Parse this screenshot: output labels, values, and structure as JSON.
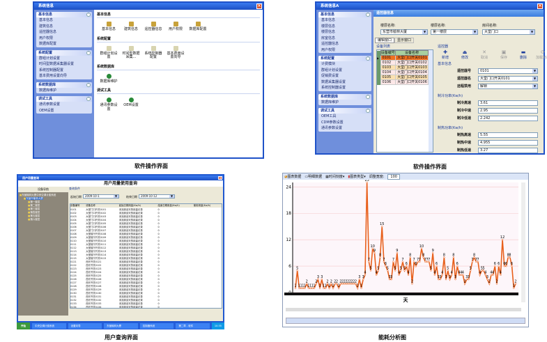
{
  "q1": {
    "title": "系统信息",
    "caption": "软件操作界面",
    "groups": [
      {
        "title": "基本信息",
        "items": [
          "基本信息",
          "建筑信息",
          "遥控器信息",
          "用户权限",
          "数据库配置"
        ]
      },
      {
        "title": "系统配置",
        "items": [
          "群组计划设置",
          "时间型数据采集器设置",
          "系统控制器配置",
          "基本费用设置向导"
        ]
      },
      {
        "title": "系统数据库",
        "items": [
          "数据库维护"
        ]
      },
      {
        "title": "调试工具",
        "items": [
          "通讯参数设置",
          "OEM设置"
        ]
      }
    ],
    "sections": [
      {
        "title": "基本信息",
        "icon": "house-icon",
        "items": [
          "基本信息",
          "建筑信息",
          "遥控器信息",
          "用户权限",
          "数据库配置"
        ]
      },
      {
        "title": "系统配置",
        "icon": "document-icon",
        "items": [
          "群组计划设置",
          "时间型数据采集...",
          "系统控制器配置",
          "基本费用设置向导"
        ]
      },
      {
        "title": "系统数据库",
        "icon": "globe-icon",
        "items": [
          "数据库维护"
        ]
      },
      {
        "title": "调试工具",
        "icon": "globe-icon",
        "items": [
          "通讯参数设置",
          "OEM设置"
        ]
      }
    ]
  },
  "q2": {
    "title": "系统信息A",
    "caption": "软件操作界面",
    "header": "遥控器信息",
    "groups": [
      {
        "title": "基本信息",
        "items": [
          "基本信息",
          "楼层信息",
          "楼层信息",
          "房室信息",
          "遥控器信息",
          "用户权限"
        ]
      },
      {
        "title": "系统配置",
        "items": [
          "计费模块",
          "群组计划设置",
          "促销费设置",
          "数据采集器设置",
          "系统控制器设置"
        ]
      },
      {
        "title": "系统数据库",
        "items": [
          "数据库维护"
        ]
      },
      {
        "title": "调试工具",
        "items": [
          "OEM工具",
          "CDM参数设置",
          "通讯参数设置"
        ]
      }
    ],
    "building_label": "楼层名称:",
    "building": "东营市榆林大厦",
    "floor_label": "楼层名称:",
    "floor": "第一楼层",
    "room_label": "房间名称:",
    "room": "大堂门口",
    "tabs": [
      "编辑窗口",
      "显示窗口"
    ],
    "list_title": "设备列表",
    "cols": [
      "设备编号",
      "设备名称"
    ],
    "rows": [
      [
        "0101",
        "大堂门口开关0101"
      ],
      [
        "0102",
        "大堂门口开关0102"
      ],
      [
        "0103",
        "大堂门口开关0103"
      ],
      [
        "0104",
        "大堂门口开关0104"
      ],
      [
        "0105",
        "大堂门口开关0105"
      ],
      [
        "0106",
        "大堂门口开关0106"
      ]
    ],
    "remote_title": "遥控器",
    "toolbar": [
      "新增",
      "修改",
      "取消",
      "保存",
      "删除",
      "加载功率"
    ],
    "basic_title": "基本信息",
    "basic": [
      [
        "遥控器号",
        "0101"
      ],
      [
        "遥控器名",
        "大堂门口开关0101"
      ],
      [
        "远程禁用",
        "解锁"
      ]
    ],
    "cool_title": "制冷功率(Kw/h)",
    "cool": [
      [
        "制冷高速",
        "3.61"
      ],
      [
        "制冷中速",
        "2.95"
      ],
      [
        "制冷低速",
        "2.242"
      ]
    ],
    "heat_title": "制热功率(Kw/h)",
    "heat": [
      [
        "制热高速",
        "5.55"
      ],
      [
        "制热中速",
        "4.955"
      ],
      [
        "制热低速",
        "3.27"
      ]
    ]
  },
  "q3": {
    "title": "用户用量查询",
    "caption": "用户查询界面",
    "header": "用户用量使用查询",
    "nav_title": "设备导航",
    "tree": [
      "东营榆林大厦中央空调计费系统",
      "东营市榆林大厦",
      "第一楼层",
      "第二楼层",
      "第三楼层",
      "第四楼层",
      "第五楼层",
      "第六楼层"
    ],
    "query_title": "查询条件",
    "start_label": "起始日期",
    "start": "2009-10-1",
    "end_label": "结束日期",
    "end": "2009-10-12",
    "cols": [
      "设备编号",
      "设备名称",
      "起始日期用量(Kw/h)",
      "结束日期用量(Kw/h)",
      "使用用量(Kw/h)"
    ],
    "rows": [
      [
        "0101",
        "大堂门口开关0101"
      ],
      [
        "0102",
        "大堂门口开关0102"
      ],
      [
        "0103",
        "大堂门口开关0103"
      ],
      [
        "0104",
        "大堂门口开关0104"
      ],
      [
        "0105",
        "大堂门口开关0105"
      ],
      [
        "0106",
        "大堂门口开关0106"
      ],
      [
        "0107",
        "大堂门口开关0107"
      ],
      [
        "0108",
        "大堂前厅开关0108"
      ],
      [
        "0109",
        "大堂前厅开关0109"
      ],
      [
        "0110",
        "大堂前厅开关0110"
      ],
      [
        "0111",
        "大堂前厅开关0111"
      ],
      [
        "0112",
        "大堂前厅开关0112"
      ],
      [
        "0113",
        "大堂前厅开关0113"
      ],
      [
        "0114",
        "大堂前厅开关0114"
      ],
      [
        "0115",
        "大堂前厅开关0115"
      ],
      [
        "0121",
        "西厅开关0121"
      ],
      [
        "0122",
        "西厅开关0122"
      ],
      [
        "0123",
        "西厅开关0123"
      ],
      [
        "0124",
        "西厅开关0124"
      ],
      [
        "0125",
        "西厅开关0125"
      ],
      [
        "0126",
        "西厅开关0126"
      ],
      [
        "0127",
        "西厅开关0127"
      ],
      [
        "0128",
        "西厅开关0128"
      ],
      [
        "0129",
        "西厅开关0129"
      ],
      [
        "0130",
        "西厅开关0130"
      ],
      [
        "0131",
        "西厅开关0131"
      ],
      [
        "0132",
        "西厅开关0132"
      ],
      [
        "0133",
        "西厅开关0133"
      ],
      [
        "0134",
        "西厅开关0134"
      ],
      [
        "0135",
        "西厅开关0135"
      ],
      [
        "0136",
        "西厅开关0136"
      ],
      [
        "0137",
        "西厅开关0137"
      ],
      [
        "0138",
        "西厅开关0138"
      ],
      [
        "0139",
        "西厅开关0139"
      ],
      [
        "0140",
        "西厅开关0140"
      ],
      [
        "0141",
        "西厅开关0141"
      ]
    ],
    "col3": "未找到该天的用量记录",
    "col4": "0",
    "taskbar": {
      "start": "开始",
      "items": [
        "中央空调计费系统",
        "设置向导",
        "东营榆林大厦",
        "控制器系统",
        "第二章 - 软件"
      ],
      "clock": "10:35"
    }
  },
  "q4": {
    "caption": "能耗分析图",
    "toolbar": {
      "chart_data": "图表数据",
      "detail": "明细数据",
      "time_scale": "时间刻度",
      "chart_type": "图表类型",
      "width_label": "调整宽度:",
      "width_value": "100"
    },
    "chart_data": {
      "type": "line",
      "xlabel": "天",
      "ylabel": "",
      "ylim": [
        0,
        25
      ],
      "yticks": [
        0,
        6,
        12,
        18,
        24
      ],
      "grid": true,
      "color": "#e8601c",
      "values": [
        1,
        5,
        1,
        1,
        1,
        1,
        2,
        1,
        1,
        1,
        1,
        2,
        3,
        1,
        3,
        1,
        1,
        2,
        1,
        2,
        1,
        2,
        2,
        1,
        2,
        2,
        2,
        2,
        2,
        2,
        2,
        2,
        2,
        1,
        3,
        1,
        3,
        4,
        25,
        7,
        5,
        10,
        9,
        4,
        5,
        8,
        15,
        7,
        6,
        5,
        3,
        3,
        7,
        5,
        9,
        4,
        5,
        7,
        5,
        6,
        4,
        8,
        2,
        7,
        6,
        7,
        7,
        10,
        8,
        7,
        7,
        7,
        5,
        9,
        4,
        6,
        3,
        3,
        4,
        8,
        3,
        5,
        3,
        4,
        8,
        3,
        6,
        4,
        4,
        4,
        2,
        3,
        3,
        5,
        7,
        8,
        7,
        7,
        4,
        5,
        5,
        4,
        3,
        2,
        4,
        4,
        6,
        2,
        6,
        4,
        12,
        6,
        6,
        8,
        8,
        6,
        1,
        2
      ]
    }
  }
}
